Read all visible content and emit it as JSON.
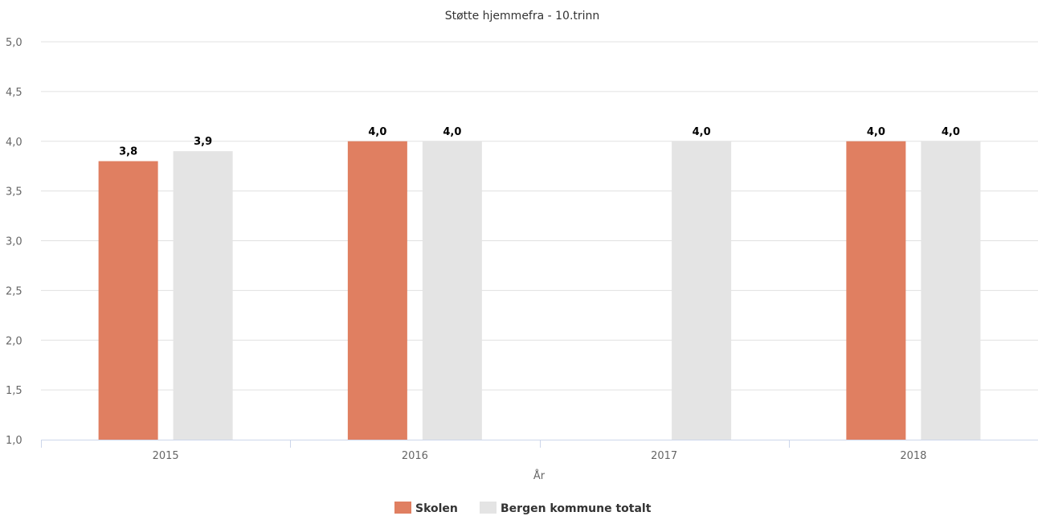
{
  "chart_data": {
    "type": "bar",
    "title": "Støtte hjemmefra - 10.trinn",
    "xlabel": "År",
    "ylabel": "",
    "ylim": [
      1.0,
      5.0
    ],
    "yticks": [
      "1,0",
      "1,5",
      "2,0",
      "2,5",
      "3,0",
      "3,5",
      "4,0",
      "4,5",
      "5,0"
    ],
    "categories": [
      "2015",
      "2016",
      "2017",
      "2018"
    ],
    "series": [
      {
        "name": "Skolen",
        "color": "#e07f61",
        "values": [
          3.8,
          4.0,
          null,
          4.0
        ],
        "labels": [
          "3,8",
          "4,0",
          "",
          "4,0"
        ]
      },
      {
        "name": "Bergen kommune totalt",
        "color": "#e4e4e4",
        "values": [
          3.9,
          4.0,
          4.0,
          4.0
        ],
        "labels": [
          "3,9",
          "4,0",
          "4,0",
          "4,0"
        ]
      }
    ],
    "grid": true,
    "legend": "bottom-center"
  }
}
